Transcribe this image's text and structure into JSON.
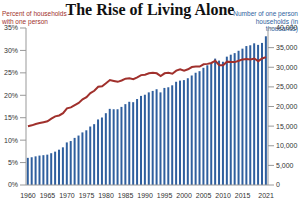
{
  "chart_data": {
    "type": "bar",
    "title": "The Rise of Living Alone",
    "y_label": "Percent of households with one person",
    "y2_label": "Number of one person households (in thousands)",
    "categories": [
      "1960",
      null,
      null,
      null,
      null,
      "1965",
      null,
      null,
      null,
      null,
      "1970",
      null,
      null,
      null,
      null,
      "1975",
      null,
      null,
      null,
      null,
      "1980",
      null,
      null,
      null,
      null,
      "1985",
      null,
      null,
      null,
      null,
      "1990",
      null,
      null,
      null,
      null,
      "1995",
      null,
      null,
      null,
      null,
      "2000",
      null,
      null,
      null,
      null,
      "2005",
      null,
      null,
      null,
      null,
      "2010",
      null,
      null,
      null,
      null,
      "2015",
      null,
      null,
      null,
      null,
      null,
      "2021"
    ],
    "series": [
      {
        "type": "bar",
        "axis": "y2",
        "color": "#2f5f9e",
        "values": [
          6917,
          7100,
          7300,
          7500,
          7600,
          7734,
          8100,
          8500,
          9000,
          9600,
          10851,
          11200,
          12000,
          12600,
          13400,
          13939,
          14900,
          15500,
          16700,
          17200,
          18296,
          19400,
          19300,
          19300,
          19900,
          20602,
          21200,
          21100,
          21900,
          22700,
          22999,
          23600,
          23970,
          24400,
          23600,
          24732,
          24900,
          25400,
          26300,
          26600,
          26724,
          27200,
          27900,
          28600,
          29000,
          29858,
          30500,
          31100,
          32200,
          31700,
          31399,
          32700,
          33200,
          33600,
          34200,
          34740,
          35400,
          35600,
          36100,
          35700,
          36198,
          37889
        ]
      },
      {
        "type": "line",
        "axis": "y",
        "color": "#a0302c",
        "values": [
          13.1,
          13.3,
          13.6,
          13.8,
          14.0,
          14.2,
          14.8,
          15.3,
          15.5,
          16.0,
          17.1,
          17.3,
          17.8,
          18.3,
          19.1,
          19.6,
          20.5,
          21.0,
          21.9,
          22.0,
          22.7,
          23.4,
          23.2,
          23.0,
          23.3,
          23.7,
          23.8,
          23.6,
          24.0,
          24.5,
          24.6,
          24.9,
          25.0,
          24.9,
          24.3,
          24.9,
          25.0,
          24.8,
          25.5,
          25.8,
          25.5,
          25.8,
          26.3,
          26.4,
          26.4,
          26.9,
          27.0,
          27.2,
          27.7,
          26.7,
          26.7,
          27.5,
          27.4,
          27.4,
          27.7,
          28.0,
          28.1,
          28.0,
          28.2,
          27.6,
          28.2,
          28.5
        ]
      }
    ],
    "ylim": [
      0,
      35
    ],
    "yticks": [
      {
        "value": 0,
        "label": "0%"
      },
      {
        "value": 5,
        "label": "5%"
      },
      {
        "value": 10,
        "label": "10%"
      },
      {
        "value": 15,
        "label": "15%"
      },
      {
        "value": 20,
        "label": "20%"
      },
      {
        "value": 25,
        "label": "25%"
      },
      {
        "value": 30,
        "label": "30%"
      },
      {
        "value": 35,
        "label": "35%"
      }
    ],
    "y2lim": [
      0,
      40000
    ],
    "y2ticks": [
      0,
      {
        "value": 5000,
        "label": "5,000"
      },
      {
        "value": 10000,
        "label": "10,000"
      },
      {
        "value": 15000,
        "label": "15,000"
      },
      {
        "value": 20000,
        "label": "20,000"
      },
      {
        "value": 25000,
        "label": "25,000"
      },
      {
        "value": 30000,
        "label": "30,000"
      },
      {
        "value": 35000,
        "label": "35,000"
      },
      {
        "value": 40000,
        "label": "40,000"
      }
    ],
    "grid": false
  }
}
